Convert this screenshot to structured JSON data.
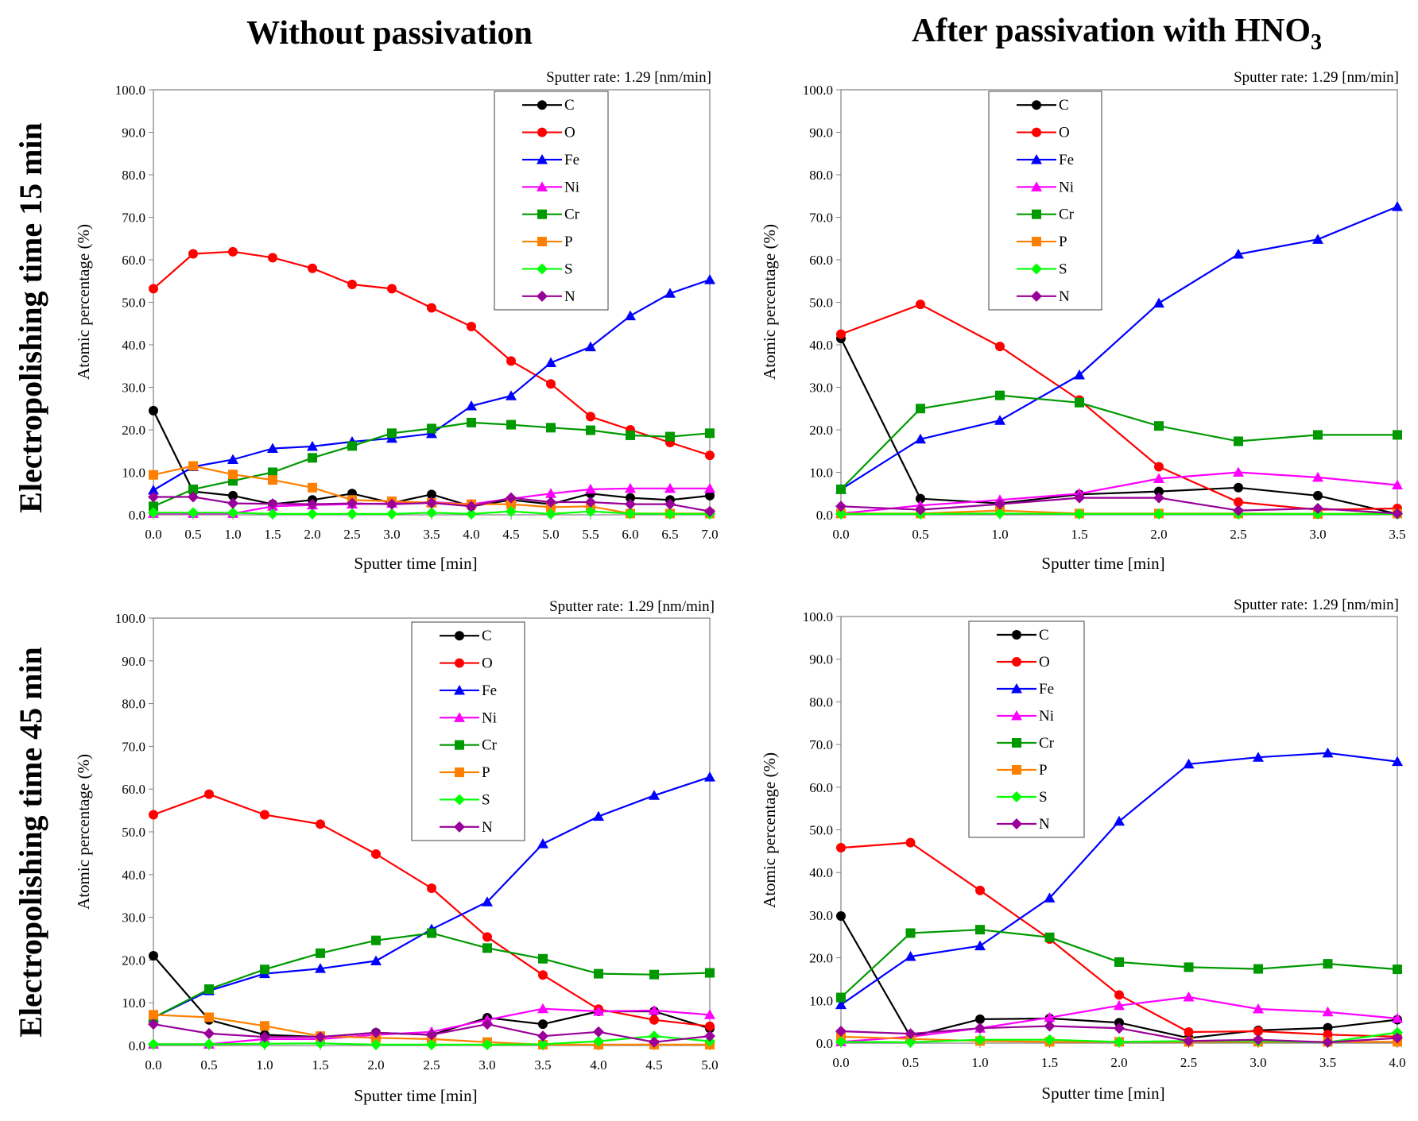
{
  "headers": {
    "col_left": "Without passivation",
    "col_right_prefix": "After passivation with HNO",
    "col_right_sub": "3",
    "row_top": "Electropolishing time 15 min",
    "row_bottom": "Electropolishing time 45 min"
  },
  "legend": [
    {
      "name": "C",
      "color": "#000000",
      "marker": "circle"
    },
    {
      "name": "O",
      "color": "#ff0000",
      "marker": "circle"
    },
    {
      "name": "Fe",
      "color": "#0000ff",
      "marker": "triangle"
    },
    {
      "name": "Ni",
      "color": "#ff00ff",
      "marker": "triangle"
    },
    {
      "name": "Cr",
      "color": "#009900",
      "marker": "square"
    },
    {
      "name": "P",
      "color": "#ff8000",
      "marker": "square"
    },
    {
      "name": "S",
      "color": "#00ff00",
      "marker": "diamond"
    },
    {
      "name": "N",
      "color": "#990099",
      "marker": "diamond"
    }
  ],
  "chart_data": [
    {
      "id": "ep15-nopass",
      "type": "line",
      "title": "Sputter rate: 1.29 [nm/min]",
      "xlabel": "Sputter time [min]",
      "ylabel": "Atomic percentage (%)",
      "xlim": [
        0,
        7
      ],
      "ylim": [
        0,
        100
      ],
      "x_ticks": [
        "0.0",
        "0.5",
        "1.0",
        "1.5",
        "2.0",
        "2.5",
        "3.0",
        "3.5",
        "4.0",
        "4.5",
        "5.0",
        "5.5",
        "6.0",
        "6.5",
        "7.0"
      ],
      "y_ticks": [
        "0.0",
        "10.0",
        "20.0",
        "30.0",
        "40.0",
        "50.0",
        "60.0",
        "70.0",
        "80.0",
        "90.0",
        "100.0"
      ],
      "x": [
        0,
        0.5,
        1.0,
        1.5,
        2.0,
        2.5,
        3.0,
        3.5,
        4.0,
        4.5,
        5.0,
        5.5,
        6.0,
        6.5,
        7.0
      ],
      "series": [
        {
          "name": "C",
          "values": [
            24.5,
            5.5,
            4.5,
            2.5,
            3.5,
            5.0,
            2.8,
            4.8,
            2.0,
            3.5,
            2.5,
            5.0,
            4.0,
            3.5,
            4.5
          ]
        },
        {
          "name": "O",
          "values": [
            53.2,
            61.4,
            61.9,
            60.5,
            58.0,
            54.2,
            53.2,
            48.7,
            44.3,
            36.2,
            30.8,
            23.1,
            20.0,
            17.0,
            14.0
          ]
        },
        {
          "name": "Fe",
          "values": [
            5.8,
            11.3,
            13.0,
            15.6,
            16.1,
            17.2,
            18.0,
            19.1,
            25.6,
            28.0,
            35.8,
            39.5,
            46.8,
            52.1,
            55.3
          ]
        },
        {
          "name": "Ni",
          "values": [
            0.3,
            0.3,
            0.3,
            2.0,
            2.3,
            2.5,
            2.7,
            3.0,
            2.5,
            3.8,
            5.0,
            6.0,
            6.2,
            6.2,
            6.2
          ]
        },
        {
          "name": "Cr",
          "values": [
            2.0,
            6.0,
            8.0,
            10.0,
            13.4,
            16.2,
            19.2,
            20.3,
            21.7,
            21.2,
            20.5,
            19.9,
            18.7,
            18.4,
            19.2
          ]
        },
        {
          "name": "P",
          "values": [
            9.4,
            11.5,
            9.5,
            8.2,
            6.4,
            3.5,
            3.2,
            2.8,
            2.5,
            2.5,
            1.8,
            2.0,
            0.3,
            0.3,
            0.3
          ]
        },
        {
          "name": "S",
          "values": [
            0.5,
            0.5,
            0.5,
            0.2,
            0.2,
            0.2,
            0.2,
            0.5,
            0.2,
            0.8,
            0.2,
            0.8,
            0.3,
            0.2,
            0.2
          ]
        },
        {
          "name": "N",
          "values": [
            4.2,
            4.2,
            2.7,
            2.6,
            2.5,
            2.7,
            2.5,
            2.8,
            2.0,
            4.0,
            3.0,
            3.0,
            2.5,
            2.5,
            0.8
          ]
        }
      ]
    },
    {
      "id": "ep15-hno3",
      "type": "line",
      "title": "Sputter rate: 1.29 [nm/min]",
      "xlabel": "Sputter time [min]",
      "ylabel": "Atomic percentage (%)",
      "xlim": [
        0,
        3.5
      ],
      "ylim": [
        0,
        100
      ],
      "x_ticks": [
        "0.0",
        "0.5",
        "1.0",
        "1.5",
        "2.0",
        "2.5",
        "3.0",
        "3.5"
      ],
      "y_ticks": [
        "0.0",
        "10.0",
        "20.0",
        "30.0",
        "40.0",
        "50.0",
        "60.0",
        "70.0",
        "80.0",
        "90.0",
        "100.0"
      ],
      "x": [
        0,
        0.5,
        1.0,
        1.5,
        2.0,
        2.5,
        3.0,
        3.5
      ],
      "series": [
        {
          "name": "C",
          "values": [
            41.5,
            3.8,
            2.7,
            4.8,
            5.5,
            6.4,
            4.5,
            0.2
          ]
        },
        {
          "name": "O",
          "values": [
            42.5,
            49.5,
            39.6,
            27.0,
            11.3,
            3.0,
            1.2,
            1.5
          ]
        },
        {
          "name": "Fe",
          "values": [
            6.0,
            17.8,
            22.2,
            32.9,
            49.8,
            61.3,
            64.8,
            72.5
          ]
        },
        {
          "name": "Ni",
          "values": [
            0.3,
            2.2,
            3.5,
            5.0,
            8.5,
            10.0,
            8.8,
            7.0
          ]
        },
        {
          "name": "Cr",
          "values": [
            6.0,
            25.0,
            28.1,
            26.4,
            20.9,
            17.3,
            18.8,
            18.8
          ]
        },
        {
          "name": "P",
          "values": [
            0.3,
            0.3,
            1.0,
            0.3,
            0.3,
            0.3,
            0.2,
            0.3
          ]
        },
        {
          "name": "S",
          "values": [
            0.2,
            0.2,
            0.3,
            0.2,
            0.2,
            0.2,
            0.2,
            0.2
          ]
        },
        {
          "name": "N",
          "values": [
            2.0,
            1.2,
            2.5,
            4.0,
            4.0,
            1.0,
            1.5,
            0.3
          ]
        }
      ]
    },
    {
      "id": "ep45-nopass",
      "type": "line",
      "title": "Sputter rate: 1.29 [nm/min]",
      "xlabel": "Sputter time [min]",
      "ylabel": "Atomic percentage (%)",
      "xlim": [
        0,
        5
      ],
      "ylim": [
        0,
        100
      ],
      "x_ticks": [
        "0.0",
        "0.5",
        "1.0",
        "1.5",
        "2.0",
        "2.5",
        "3.0",
        "3.5",
        "4.0",
        "4.5",
        "5.0"
      ],
      "y_ticks": [
        "0.0",
        "10.0",
        "20.0",
        "30.0",
        "40.0",
        "50.0",
        "60.0",
        "70.0",
        "80.0",
        "90.0",
        "100.0"
      ],
      "x": [
        0,
        0.5,
        1.0,
        1.5,
        2.0,
        2.5,
        3.0,
        3.5,
        4.0,
        4.5,
        5.0
      ],
      "series": [
        {
          "name": "C",
          "values": [
            21.0,
            6.0,
            2.5,
            2.0,
            3.0,
            2.5,
            6.5,
            5.0,
            8.0,
            8.0,
            4.0
          ]
        },
        {
          "name": "O",
          "values": [
            54.0,
            58.8,
            54.0,
            51.8,
            44.8,
            36.8,
            25.4,
            16.5,
            8.5,
            6.0,
            4.5
          ]
        },
        {
          "name": "Fe",
          "values": [
            6.5,
            12.8,
            16.8,
            18.0,
            19.8,
            27.2,
            33.6,
            47.2,
            53.6,
            58.5,
            62.8
          ]
        },
        {
          "name": "Ni",
          "values": [
            0.3,
            0.3,
            1.5,
            1.5,
            2.5,
            3.2,
            6.0,
            8.6,
            8.0,
            8.2,
            7.2
          ]
        },
        {
          "name": "Cr",
          "values": [
            6.5,
            13.2,
            17.8,
            21.6,
            24.6,
            26.3,
            22.8,
            20.3,
            16.8,
            16.6,
            17.0
          ]
        },
        {
          "name": "P",
          "values": [
            7.2,
            6.6,
            4.6,
            2.2,
            1.8,
            1.5,
            0.8,
            0.2,
            0.2,
            0.2,
            0.2
          ]
        },
        {
          "name": "S",
          "values": [
            0.3,
            0.3,
            0.4,
            0.5,
            0.2,
            0.2,
            0.2,
            0.3,
            1.0,
            2.2,
            1.0
          ]
        },
        {
          "name": "N",
          "values": [
            5.0,
            2.8,
            2.0,
            2.0,
            3.0,
            2.5,
            5.0,
            2.2,
            3.2,
            0.8,
            2.2
          ]
        }
      ]
    },
    {
      "id": "ep45-hno3",
      "type": "line",
      "title": "Sputter rate: 1.29 [nm/min]",
      "xlabel": "Sputter time [min]",
      "ylabel": "Atomic percentage (%)",
      "xlim": [
        0,
        4
      ],
      "ylim": [
        0,
        100
      ],
      "x_ticks": [
        "0.0",
        "0.5",
        "1.0",
        "1.5",
        "2.0",
        "2.5",
        "3.0",
        "3.5",
        "4.0"
      ],
      "y_ticks": [
        "0.0",
        "10.0",
        "20.0",
        "30.0",
        "40.0",
        "50.0",
        "60.0",
        "70.0",
        "80.0",
        "90.0",
        "100.0"
      ],
      "x": [
        0,
        0.5,
        1.0,
        1.5,
        2.0,
        2.5,
        3.0,
        3.5,
        4.0
      ],
      "series": [
        {
          "name": "C",
          "values": [
            29.8,
            1.5,
            5.6,
            5.8,
            4.8,
            1.2,
            3.0,
            3.6,
            5.5
          ]
        },
        {
          "name": "O",
          "values": [
            45.8,
            47.0,
            35.8,
            24.4,
            11.3,
            2.6,
            2.8,
            2.0,
            1.5
          ]
        },
        {
          "name": "Fe",
          "values": [
            9.0,
            20.3,
            22.8,
            34.0,
            52.0,
            65.4,
            67.0,
            68.0,
            66.0
          ]
        },
        {
          "name": "Ni",
          "values": [
            0.3,
            1.5,
            3.5,
            6.0,
            8.8,
            10.8,
            8.0,
            7.3,
            5.8
          ]
        },
        {
          "name": "Cr",
          "values": [
            10.7,
            25.8,
            26.6,
            24.8,
            19.0,
            17.8,
            17.4,
            18.6,
            17.3
          ]
        },
        {
          "name": "P",
          "values": [
            1.5,
            1.0,
            0.5,
            0.3,
            0.3,
            0.3,
            0.3,
            0.3,
            0.3
          ]
        },
        {
          "name": "S",
          "values": [
            0.3,
            0.2,
            0.8,
            0.8,
            0.3,
            0.5,
            0.5,
            0.2,
            2.5
          ]
        },
        {
          "name": "N",
          "values": [
            2.8,
            2.2,
            3.5,
            4.0,
            3.5,
            0.5,
            0.8,
            0.2,
            1.2
          ]
        }
      ]
    }
  ]
}
